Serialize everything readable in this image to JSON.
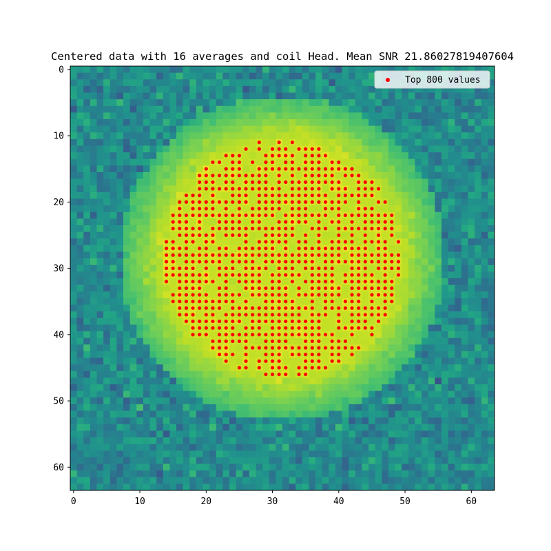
{
  "chart_data": {
    "type": "heatmap",
    "title": "Centered data with 16 averages and coil Head. Mean SNR 21.86027819407604",
    "xlabel": "",
    "ylabel": "",
    "x_ticks": [
      "0",
      "10",
      "20",
      "30",
      "40",
      "50",
      "60"
    ],
    "y_ticks": [
      "0",
      "10",
      "20",
      "30",
      "40",
      "50",
      "60"
    ],
    "xlim": [
      -0.5,
      63.5
    ],
    "ylim": [
      63.5,
      -0.5
    ],
    "grid_size": [
      64,
      64
    ],
    "colormap": "viridis",
    "color_range": [
      0,
      1
    ],
    "grid": false,
    "legend_position": "top-right",
    "series": [
      {
        "name": "Top 800 values",
        "type": "scatter",
        "color": "#ff0000",
        "description": "pixels of the bright central disk (approx. center col 31.5, row 28.5) carrying the 800 highest values",
        "count": 800
      }
    ],
    "image": {
      "disk_center": [
        31.5,
        28.5
      ],
      "disk_radius_inner": 17.5,
      "disk_radius_outer": 24.5,
      "background_level": 0.48,
      "disk_level": 0.93
    }
  }
}
